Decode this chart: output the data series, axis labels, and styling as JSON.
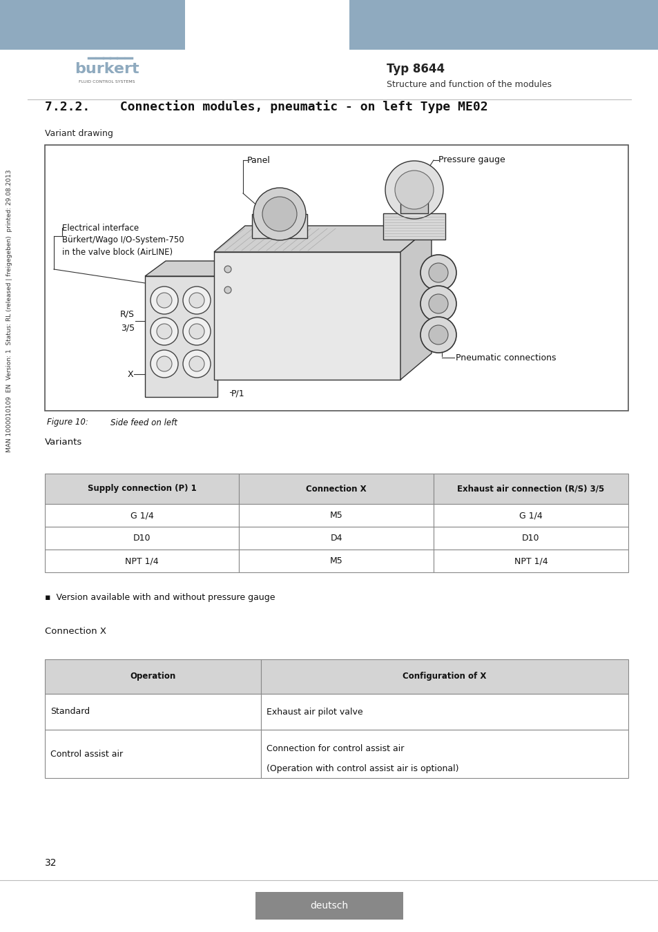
{
  "page_bg": "#ffffff",
  "header_bar_color": "#8faabf",
  "typ_label": "Typ 8644",
  "subtitle_label": "Structure and function of the modules",
  "section_title": "7.2.2.    Connection modules, pneumatic - on left Type ME02",
  "variant_drawing_label": "Variant drawing",
  "figure_caption_a": "Figure 10:",
  "figure_caption_b": "Side feed on left",
  "variants_label": "Variants",
  "connection_x_label": "Connection X",
  "bullet_text": "▪  Version available with and without pressure gauge",
  "table1_headers": [
    "Supply connection (P) 1",
    "Connection X",
    "Exhaust air connection (R/S) 3/5"
  ],
  "table1_rows": [
    [
      "G 1/4",
      "M5",
      "G 1/4"
    ],
    [
      "D10",
      "D4",
      "D10"
    ],
    [
      "NPT 1/4",
      "M5",
      "NPT 1/4"
    ]
  ],
  "table2_headers": [
    "Operation",
    "Configuration of X"
  ],
  "table2_rows": [
    [
      "Standard",
      "Exhaust air pilot valve"
    ],
    [
      "Control assist air",
      "Connection for control assist air\n(Operation with control assist air is optional)"
    ]
  ],
  "table_header_bg": "#d4d4d4",
  "table_row_bg": "#ffffff",
  "table_border_color": "#888888",
  "page_number": "32",
  "footer_label": "deutsch",
  "footer_bg": "#888888",
  "sidebar_text": "MAN 1000010109  EN  Version: 1  Status: RL (released | freigegeben)  printed: 29.08.2013",
  "diagram_bg": "#ffffff",
  "panel_label": "Panel",
  "pressure_gauge_label": "Pressure gauge",
  "ei_line1": "Electrical interface",
  "ei_line2": "Bürkert/Wago I/O-System-750",
  "ei_line3": "in the valve block (AirLINE)",
  "rs_line1": "R/S",
  "rs_line2": "3/5",
  "x_label": "X",
  "p1_label": "P/1",
  "pneumatic_label": "Pneumatic connections"
}
